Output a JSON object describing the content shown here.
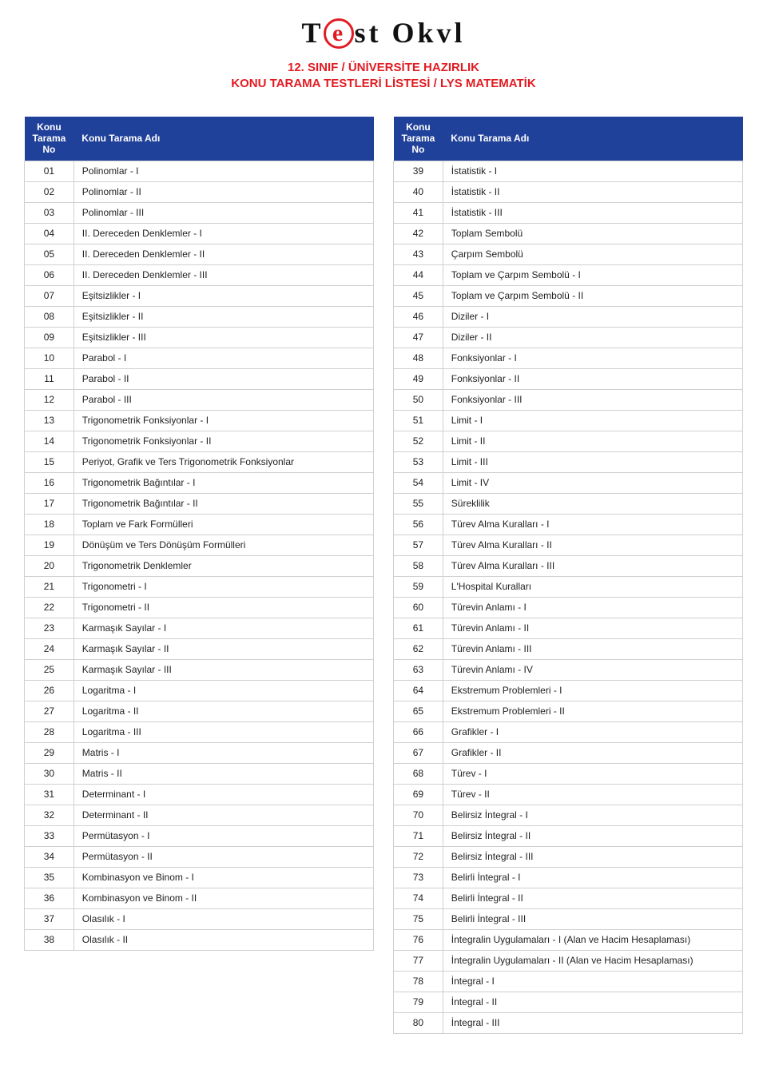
{
  "logo": {
    "part1": "T",
    "e": "e",
    "part2": "st Okvl"
  },
  "heading_line1": "12. SINIF / ÜNİVERSİTE HAZIRLIK",
  "heading_line2": "KONU TARAMA TESTLERİ LİSTESİ / LYS MATEMATİK",
  "header_no": "Konu Tarama No",
  "header_name": "Konu Tarama Adı",
  "colors": {
    "accent_red": "#e11b22",
    "header_blue": "#20419a",
    "border_gray": "#d0d0d0",
    "text": "#222222",
    "background": "#ffffff"
  },
  "left": [
    {
      "no": "01",
      "name": "Polinomlar - I"
    },
    {
      "no": "02",
      "name": "Polinomlar - II"
    },
    {
      "no": "03",
      "name": "Polinomlar - III"
    },
    {
      "no": "04",
      "name": "II. Dereceden Denklemler - I"
    },
    {
      "no": "05",
      "name": "II. Dereceden Denklemler - II"
    },
    {
      "no": "06",
      "name": "II. Dereceden Denklemler - III"
    },
    {
      "no": "07",
      "name": "Eşitsizlikler - I"
    },
    {
      "no": "08",
      "name": "Eşitsizlikler - II"
    },
    {
      "no": "09",
      "name": "Eşitsizlikler - III"
    },
    {
      "no": "10",
      "name": "Parabol - I"
    },
    {
      "no": "11",
      "name": "Parabol - II"
    },
    {
      "no": "12",
      "name": "Parabol - III"
    },
    {
      "no": "13",
      "name": "Trigonometrik Fonksiyonlar - I"
    },
    {
      "no": "14",
      "name": "Trigonometrik Fonksiyonlar - II"
    },
    {
      "no": "15",
      "name": "Periyot, Grafik ve Ters Trigonometrik Fonksiyonlar"
    },
    {
      "no": "16",
      "name": "Trigonometrik Bağıntılar - I"
    },
    {
      "no": "17",
      "name": "Trigonometrik Bağıntılar - II"
    },
    {
      "no": "18",
      "name": "Toplam ve Fark Formülleri"
    },
    {
      "no": "19",
      "name": "Dönüşüm ve Ters Dönüşüm Formülleri"
    },
    {
      "no": "20",
      "name": "Trigonometrik Denklemler"
    },
    {
      "no": "21",
      "name": "Trigonometri - I"
    },
    {
      "no": "22",
      "name": "Trigonometri - II"
    },
    {
      "no": "23",
      "name": "Karmaşık Sayılar - I"
    },
    {
      "no": "24",
      "name": "Karmaşık Sayılar - II"
    },
    {
      "no": "25",
      "name": "Karmaşık Sayılar - III"
    },
    {
      "no": "26",
      "name": "Logaritma - I"
    },
    {
      "no": "27",
      "name": "Logaritma - II"
    },
    {
      "no": "28",
      "name": "Logaritma - III"
    },
    {
      "no": "29",
      "name": "Matris - I"
    },
    {
      "no": "30",
      "name": "Matris - II"
    },
    {
      "no": "31",
      "name": "Determinant - I"
    },
    {
      "no": "32",
      "name": "Determinant - II"
    },
    {
      "no": "33",
      "name": "Permütasyon - I"
    },
    {
      "no": "34",
      "name": "Permütasyon - II"
    },
    {
      "no": "35",
      "name": "Kombinasyon ve Binom - I"
    },
    {
      "no": "36",
      "name": "Kombinasyon ve Binom - II"
    },
    {
      "no": "37",
      "name": "Olasılık - I"
    },
    {
      "no": "38",
      "name": "Olasılık - II"
    }
  ],
  "right": [
    {
      "no": "39",
      "name": "İstatistik - I"
    },
    {
      "no": "40",
      "name": "İstatistik - II"
    },
    {
      "no": "41",
      "name": "İstatistik - III"
    },
    {
      "no": "42",
      "name": "Toplam Sembolü"
    },
    {
      "no": "43",
      "name": "Çarpım Sembolü"
    },
    {
      "no": "44",
      "name": "Toplam ve Çarpım Sembolü - I"
    },
    {
      "no": "45",
      "name": "Toplam ve Çarpım Sembolü - II"
    },
    {
      "no": "46",
      "name": "Diziler - I"
    },
    {
      "no": "47",
      "name": "Diziler - II"
    },
    {
      "no": "48",
      "name": "Fonksiyonlar - I"
    },
    {
      "no": "49",
      "name": "Fonksiyonlar - II"
    },
    {
      "no": "50",
      "name": "Fonksiyonlar - III"
    },
    {
      "no": "51",
      "name": "Limit - I"
    },
    {
      "no": "52",
      "name": "Limit - II"
    },
    {
      "no": "53",
      "name": "Limit - III"
    },
    {
      "no": "54",
      "name": "Limit - IV"
    },
    {
      "no": "55",
      "name": "Süreklilik"
    },
    {
      "no": "56",
      "name": "Türev Alma Kuralları - I"
    },
    {
      "no": "57",
      "name": "Türev Alma Kuralları - II"
    },
    {
      "no": "58",
      "name": "Türev Alma Kuralları - III"
    },
    {
      "no": "59",
      "name": "L'Hospital Kuralları"
    },
    {
      "no": "60",
      "name": "Türevin Anlamı - I"
    },
    {
      "no": "61",
      "name": "Türevin Anlamı - II"
    },
    {
      "no": "62",
      "name": "Türevin Anlamı - III"
    },
    {
      "no": "63",
      "name": "Türevin Anlamı - IV"
    },
    {
      "no": "64",
      "name": "Ekstremum Problemleri - I"
    },
    {
      "no": "65",
      "name": "Ekstremum Problemleri - II"
    },
    {
      "no": "66",
      "name": "Grafikler - I"
    },
    {
      "no": "67",
      "name": "Grafikler - II"
    },
    {
      "no": "68",
      "name": "Türev - I"
    },
    {
      "no": "69",
      "name": "Türev - II"
    },
    {
      "no": "70",
      "name": "Belirsiz İntegral - I"
    },
    {
      "no": "71",
      "name": "Belirsiz İntegral - II"
    },
    {
      "no": "72",
      "name": "Belirsiz İntegral - III"
    },
    {
      "no": "73",
      "name": "Belirli İntegral - I"
    },
    {
      "no": "74",
      "name": "Belirli İntegral - II"
    },
    {
      "no": "75",
      "name": "Belirli İntegral - III"
    },
    {
      "no": "76",
      "name": "İntegralin Uygulamaları - I (Alan ve Hacim Hesaplaması)"
    },
    {
      "no": "77",
      "name": "İntegralin Uygulamaları - II (Alan ve Hacim Hesaplaması)"
    },
    {
      "no": "78",
      "name": "İntegral - I"
    },
    {
      "no": "79",
      "name": "İntegral - II"
    },
    {
      "no": "80",
      "name": "İntegral - III"
    }
  ]
}
